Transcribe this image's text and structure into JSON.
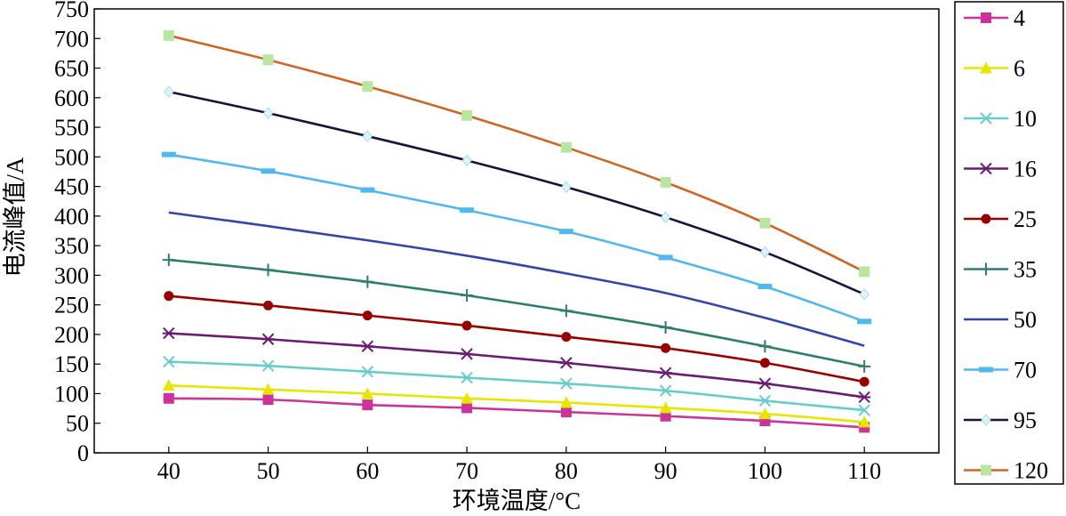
{
  "chart_data": {
    "type": "line",
    "xlabel": "环境温度/°C",
    "ylabel": "电流峰值/A",
    "x": [
      40,
      50,
      60,
      70,
      80,
      90,
      100,
      110
    ],
    "xlim": [
      32.5,
      117.5
    ],
    "ylim": [
      0,
      750
    ],
    "x_ticks": [
      "40",
      "50",
      "60",
      "70",
      "80",
      "90",
      "100",
      "110"
    ],
    "y_ticks": [
      "0",
      "50",
      "100",
      "150",
      "200",
      "250",
      "300",
      "350",
      "400",
      "450",
      "500",
      "550",
      "600",
      "650",
      "700",
      "750"
    ],
    "grid": false,
    "legend_position": "right",
    "series": [
      {
        "name": "4",
        "color": "#cc3399",
        "marker": "square",
        "values": [
          92,
          90,
          81,
          76,
          69,
          62,
          54,
          43
        ]
      },
      {
        "name": "6",
        "color": "#e6e600",
        "marker": "triangle",
        "values": [
          114,
          107,
          100,
          92,
          85,
          76,
          66,
          52
        ]
      },
      {
        "name": "10",
        "color": "#66cccc",
        "marker": "x",
        "values": [
          154,
          147,
          137,
          127,
          117,
          105,
          88,
          72
        ]
      },
      {
        "name": "16",
        "color": "#6a1b72",
        "marker": "asterisk",
        "values": [
          202,
          192,
          180,
          167,
          152,
          135,
          117,
          94
        ]
      },
      {
        "name": "25",
        "color": "#990000",
        "marker": "circle",
        "values": [
          265,
          249,
          232,
          215,
          196,
          177,
          152,
          120
        ]
      },
      {
        "name": "35",
        "color": "#2e7d6e",
        "marker": "plus",
        "values": [
          326,
          309,
          289,
          266,
          240,
          212,
          180,
          146
        ]
      },
      {
        "name": "50",
        "color": "#3344aa",
        "marker": "none",
        "values": [
          406,
          383,
          359,
          333,
          303,
          270,
          228,
          181
        ]
      },
      {
        "name": "70",
        "color": "#4fb8ee",
        "marker": "dash",
        "values": [
          504,
          476,
          444,
          410,
          374,
          330,
          281,
          222
        ]
      },
      {
        "name": "95",
        "color": "#14143c",
        "marker": "diamond",
        "values": [
          610,
          574,
          535,
          494,
          449,
          398,
          339,
          268
        ]
      },
      {
        "name": "120",
        "color": "#cc6622",
        "marker": "square-light",
        "marker_color": "#b8e6a0",
        "values": [
          705,
          664,
          619,
          570,
          516,
          457,
          388,
          306
        ]
      }
    ]
  }
}
